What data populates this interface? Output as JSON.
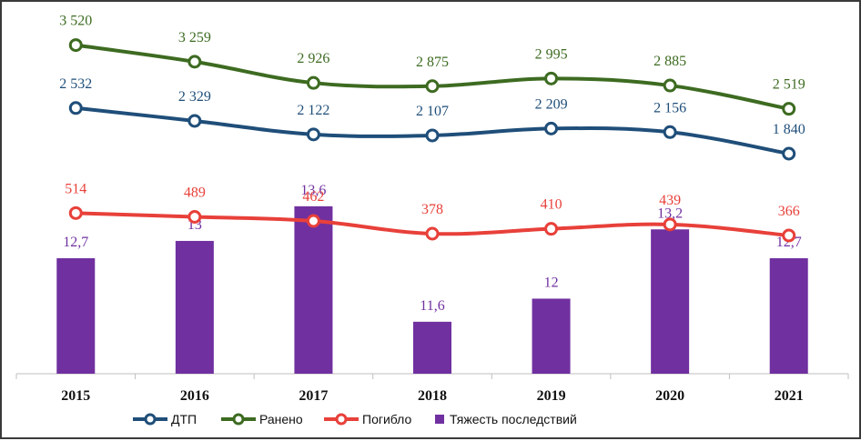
{
  "chart_data": {
    "type": "bar+line",
    "title": "",
    "xlabel": "",
    "ylabel": "",
    "categories": [
      "2015",
      "2016",
      "2017",
      "2018",
      "2019",
      "2020",
      "2021"
    ],
    "grid": false,
    "legend_position": "bottom",
    "line_series": [
      {
        "name": "Ранено",
        "color": "#3d6b21",
        "values": [
          3520,
          3259,
          2926,
          2875,
          2995,
          2885,
          2519
        ],
        "labels": [
          "3 520",
          "3 259",
          "2 926",
          "2 875",
          "2 995",
          "2 885",
          "2 519"
        ]
      },
      {
        "name": "ДТП",
        "color": "#1f4e79",
        "values": [
          2532,
          2329,
          2122,
          2107,
          2209,
          2156,
          1840
        ],
        "labels": [
          "2 532",
          "2 329",
          "2 122",
          "2 107",
          "2 209",
          "2 156",
          "1 840"
        ]
      },
      {
        "name": "Погибло",
        "color": "#e8403a",
        "values": [
          514,
          489,
          462,
          378,
          410,
          439,
          366
        ],
        "labels": [
          "514",
          "489",
          "462",
          "378",
          "410",
          "439",
          "366"
        ]
      }
    ],
    "bar_series": {
      "name": "Тяжесть последствий",
      "color": "#7030a0",
      "values": [
        12.7,
        13,
        13.6,
        11.6,
        12,
        13.2,
        12.7
      ],
      "labels": [
        "12,7",
        "13",
        "13,6",
        "11,6",
        "12",
        "13,2",
        "12,7"
      ]
    },
    "legend": [
      "ДТП",
      "Ранено",
      "Погибло",
      "Тяжесть последствий"
    ]
  }
}
